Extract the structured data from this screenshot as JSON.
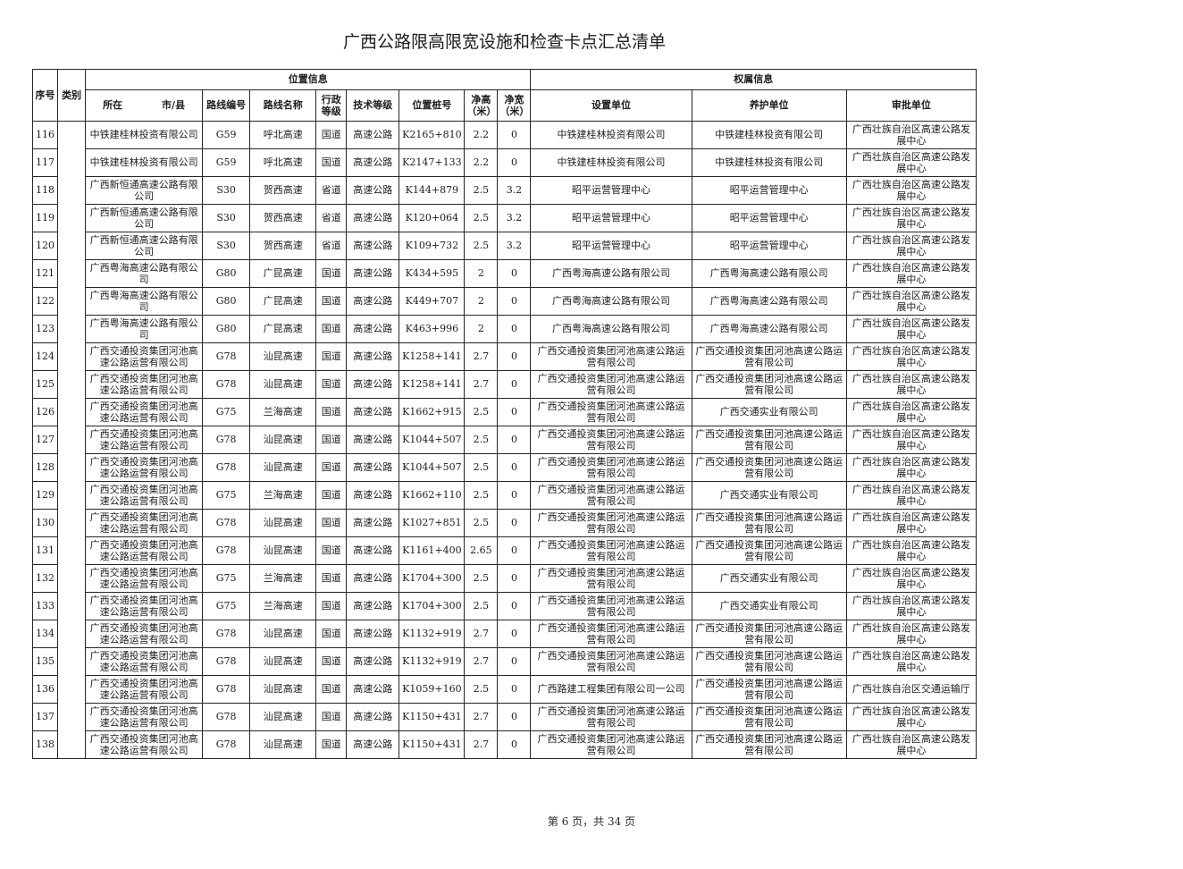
{
  "page": {
    "title": "广西公路限高限宽设施和检查卡点汇总清单",
    "footer": "第 6 页，共 34 页"
  },
  "table": {
    "header": {
      "serial": "序号",
      "category": "类别",
      "location_group": "位置信息",
      "ownership_group": "权属信息",
      "city_county": "所在　　　　市/县",
      "route_no": "路线编号",
      "route_name": "路线名称",
      "admin_level": "行政等级",
      "tech_level": "技术等级",
      "stake": "位置桩号",
      "clear_height": "净高（米）",
      "clear_width": "净宽（米）",
      "setup_unit": "设置单位",
      "maintain_unit": "养护单位",
      "approve_unit": "审批单位"
    },
    "rows": [
      {
        "no": "116",
        "city_county": "中铁建桂林投资有限公司",
        "route_no": "G59",
        "route_name": "呼北高速",
        "admin_level": "国道",
        "tech_level": "高速公路",
        "stake": "K2165+810",
        "clear_height": "2.2",
        "clear_width": "0",
        "setup_unit": "中铁建桂林投资有限公司",
        "maintain_unit": "中铁建桂林投资有限公司",
        "approve_unit": "广西壮族自治区高速公路发展中心"
      },
      {
        "no": "117",
        "city_county": "中铁建桂林投资有限公司",
        "route_no": "G59",
        "route_name": "呼北高速",
        "admin_level": "国道",
        "tech_level": "高速公路",
        "stake": "K2147+133",
        "clear_height": "2.2",
        "clear_width": "0",
        "setup_unit": "中铁建桂林投资有限公司",
        "maintain_unit": "中铁建桂林投资有限公司",
        "approve_unit": "广西壮族自治区高速公路发展中心"
      },
      {
        "no": "118",
        "city_county": "广西新恒通高速公路有限公司",
        "route_no": "S30",
        "route_name": "贺西高速",
        "admin_level": "省道",
        "tech_level": "高速公路",
        "stake": "K144+879",
        "clear_height": "2.5",
        "clear_width": "3.2",
        "setup_unit": "昭平运营管理中心",
        "maintain_unit": "昭平运营管理中心",
        "approve_unit": "广西壮族自治区高速公路发展中心"
      },
      {
        "no": "119",
        "city_county": "广西新恒通高速公路有限公司",
        "route_no": "S30",
        "route_name": "贺西高速",
        "admin_level": "省道",
        "tech_level": "高速公路",
        "stake": "K120+064",
        "clear_height": "2.5",
        "clear_width": "3.2",
        "setup_unit": "昭平运营管理中心",
        "maintain_unit": "昭平运营管理中心",
        "approve_unit": "广西壮族自治区高速公路发展中心"
      },
      {
        "no": "120",
        "city_county": "广西新恒通高速公路有限公司",
        "route_no": "S30",
        "route_name": "贺西高速",
        "admin_level": "省道",
        "tech_level": "高速公路",
        "stake": "K109+732",
        "clear_height": "2.5",
        "clear_width": "3.2",
        "setup_unit": "昭平运营管理中心",
        "maintain_unit": "昭平运营管理中心",
        "approve_unit": "广西壮族自治区高速公路发展中心"
      },
      {
        "no": "121",
        "city_county": "广西粤海高速公路有限公司",
        "route_no": "G80",
        "route_name": "广昆高速",
        "admin_level": "国道",
        "tech_level": "高速公路",
        "stake": "K434+595",
        "clear_height": "2",
        "clear_width": "0",
        "setup_unit": "广西粤海高速公路有限公司",
        "maintain_unit": "广西粤海高速公路有限公司",
        "approve_unit": "广西壮族自治区高速公路发展中心"
      },
      {
        "no": "122",
        "city_county": "广西粤海高速公路有限公司",
        "route_no": "G80",
        "route_name": "广昆高速",
        "admin_level": "国道",
        "tech_level": "高速公路",
        "stake": "K449+707",
        "clear_height": "2",
        "clear_width": "0",
        "setup_unit": "广西粤海高速公路有限公司",
        "maintain_unit": "广西粤海高速公路有限公司",
        "approve_unit": "广西壮族自治区高速公路发展中心"
      },
      {
        "no": "123",
        "city_county": "广西粤海高速公路有限公司",
        "route_no": "G80",
        "route_name": "广昆高速",
        "admin_level": "国道",
        "tech_level": "高速公路",
        "stake": "K463+996",
        "clear_height": "2",
        "clear_width": "0",
        "setup_unit": "广西粤海高速公路有限公司",
        "maintain_unit": "广西粤海高速公路有限公司",
        "approve_unit": "广西壮族自治区高速公路发展中心"
      },
      {
        "no": "124",
        "city_county": "广西交通投资集团河池高速公路运营有限公司",
        "route_no": "G78",
        "route_name": "汕昆高速",
        "admin_level": "国道",
        "tech_level": "高速公路",
        "stake": "K1258+141",
        "clear_height": "2.7",
        "clear_width": "0",
        "setup_unit": "广西交通投资集团河池高速公路运营有限公司",
        "maintain_unit": "广西交通投资集团河池高速公路运营有限公司",
        "approve_unit": "广西壮族自治区高速公路发展中心"
      },
      {
        "no": "125",
        "city_county": "广西交通投资集团河池高速公路运营有限公司",
        "route_no": "G78",
        "route_name": "汕昆高速",
        "admin_level": "国道",
        "tech_level": "高速公路",
        "stake": "K1258+141",
        "clear_height": "2.7",
        "clear_width": "0",
        "setup_unit": "广西交通投资集团河池高速公路运营有限公司",
        "maintain_unit": "广西交通投资集团河池高速公路运营有限公司",
        "approve_unit": "广西壮族自治区高速公路发展中心"
      },
      {
        "no": "126",
        "city_county": "广西交通投资集团河池高速公路运营有限公司",
        "route_no": "G75",
        "route_name": "兰海高速",
        "admin_level": "国道",
        "tech_level": "高速公路",
        "stake": "K1662+915",
        "clear_height": "2.5",
        "clear_width": "0",
        "setup_unit": "广西交通投资集团河池高速公路运营有限公司",
        "maintain_unit": "广西交通实业有限公司",
        "approve_unit": "广西壮族自治区高速公路发展中心"
      },
      {
        "no": "127",
        "city_county": "广西交通投资集团河池高速公路运营有限公司",
        "route_no": "G78",
        "route_name": "汕昆高速",
        "admin_level": "国道",
        "tech_level": "高速公路",
        "stake": "K1044+507",
        "clear_height": "2.5",
        "clear_width": "0",
        "setup_unit": "广西交通投资集团河池高速公路运营有限公司",
        "maintain_unit": "广西交通投资集团河池高速公路运营有限公司",
        "approve_unit": "广西壮族自治区高速公路发展中心"
      },
      {
        "no": "128",
        "city_county": "广西交通投资集团河池高速公路运营有限公司",
        "route_no": "G78",
        "route_name": "汕昆高速",
        "admin_level": "国道",
        "tech_level": "高速公路",
        "stake": "K1044+507",
        "clear_height": "2.5",
        "clear_width": "0",
        "setup_unit": "广西交通投资集团河池高速公路运营有限公司",
        "maintain_unit": "广西交通投资集团河池高速公路运营有限公司",
        "approve_unit": "广西壮族自治区高速公路发展中心"
      },
      {
        "no": "129",
        "city_county": "广西交通投资集团河池高速公路运营有限公司",
        "route_no": "G75",
        "route_name": "兰海高速",
        "admin_level": "国道",
        "tech_level": "高速公路",
        "stake": "K1662+110",
        "clear_height": "2.5",
        "clear_width": "0",
        "setup_unit": "广西交通投资集团河池高速公路运营有限公司",
        "maintain_unit": "广西交通实业有限公司",
        "approve_unit": "广西壮族自治区高速公路发展中心"
      },
      {
        "no": "130",
        "city_county": "广西交通投资集团河池高速公路运营有限公司",
        "route_no": "G78",
        "route_name": "汕昆高速",
        "admin_level": "国道",
        "tech_level": "高速公路",
        "stake": "K1027+851",
        "clear_height": "2.5",
        "clear_width": "0",
        "setup_unit": "广西交通投资集团河池高速公路运营有限公司",
        "maintain_unit": "广西交通投资集团河池高速公路运营有限公司",
        "approve_unit": "广西壮族自治区高速公路发展中心"
      },
      {
        "no": "131",
        "city_county": "广西交通投资集团河池高速公路运营有限公司",
        "route_no": "G78",
        "route_name": "汕昆高速",
        "admin_level": "国道",
        "tech_level": "高速公路",
        "stake": "K1161+400",
        "clear_height": "2.65",
        "clear_width": "0",
        "setup_unit": "广西交通投资集团河池高速公路运营有限公司",
        "maintain_unit": "广西交通投资集团河池高速公路运营有限公司",
        "approve_unit": "广西壮族自治区高速公路发展中心"
      },
      {
        "no": "132",
        "city_county": "广西交通投资集团河池高速公路运营有限公司",
        "route_no": "G75",
        "route_name": "兰海高速",
        "admin_level": "国道",
        "tech_level": "高速公路",
        "stake": "K1704+300",
        "clear_height": "2.5",
        "clear_width": "0",
        "setup_unit": "广西交通投资集团河池高速公路运营有限公司",
        "maintain_unit": "广西交通实业有限公司",
        "approve_unit": "广西壮族自治区高速公路发展中心"
      },
      {
        "no": "133",
        "city_county": "广西交通投资集团河池高速公路运营有限公司",
        "route_no": "G75",
        "route_name": "兰海高速",
        "admin_level": "国道",
        "tech_level": "高速公路",
        "stake": "K1704+300",
        "clear_height": "2.5",
        "clear_width": "0",
        "setup_unit": "广西交通投资集团河池高速公路运营有限公司",
        "maintain_unit": "广西交通实业有限公司",
        "approve_unit": "广西壮族自治区高速公路发展中心"
      },
      {
        "no": "134",
        "city_county": "广西交通投资集团河池高速公路运营有限公司",
        "route_no": "G78",
        "route_name": "汕昆高速",
        "admin_level": "国道",
        "tech_level": "高速公路",
        "stake": "K1132+919",
        "clear_height": "2.7",
        "clear_width": "0",
        "setup_unit": "广西交通投资集团河池高速公路运营有限公司",
        "maintain_unit": "广西交通投资集团河池高速公路运营有限公司",
        "approve_unit": "广西壮族自治区高速公路发展中心"
      },
      {
        "no": "135",
        "city_county": "广西交通投资集团河池高速公路运营有限公司",
        "route_no": "G78",
        "route_name": "汕昆高速",
        "admin_level": "国道",
        "tech_level": "高速公路",
        "stake": "K1132+919",
        "clear_height": "2.7",
        "clear_width": "0",
        "setup_unit": "广西交通投资集团河池高速公路运营有限公司",
        "maintain_unit": "广西交通投资集团河池高速公路运营有限公司",
        "approve_unit": "广西壮族自治区高速公路发展中心"
      },
      {
        "no": "136",
        "city_county": "广西交通投资集团河池高速公路运营有限公司",
        "route_no": "G78",
        "route_name": "汕昆高速",
        "admin_level": "国道",
        "tech_level": "高速公路",
        "stake": "K1059+160",
        "clear_height": "2.5",
        "clear_width": "0",
        "setup_unit": "广西路建工程集团有限公司一公司",
        "maintain_unit": "广西交通投资集团河池高速公路运营有限公司",
        "approve_unit": "广西壮族自治区交通运输厅"
      },
      {
        "no": "137",
        "city_county": "广西交通投资集团河池高速公路运营有限公司",
        "route_no": "G78",
        "route_name": "汕昆高速",
        "admin_level": "国道",
        "tech_level": "高速公路",
        "stake": "K1150+431",
        "clear_height": "2.7",
        "clear_width": "0",
        "setup_unit": "广西交通投资集团河池高速公路运营有限公司",
        "maintain_unit": "广西交通投资集团河池高速公路运营有限公司",
        "approve_unit": "广西壮族自治区高速公路发展中心"
      },
      {
        "no": "138",
        "city_county": "广西交通投资集团河池高速公路运营有限公司",
        "route_no": "G78",
        "route_name": "汕昆高速",
        "admin_level": "国道",
        "tech_level": "高速公路",
        "stake": "K1150+431",
        "clear_height": "2.7",
        "clear_width": "0",
        "setup_unit": "广西交通投资集团河池高速公路运营有限公司",
        "maintain_unit": "广西交通投资集团河池高速公路运营有限公司",
        "approve_unit": "广西壮族自治区高速公路发展中心"
      }
    ]
  }
}
